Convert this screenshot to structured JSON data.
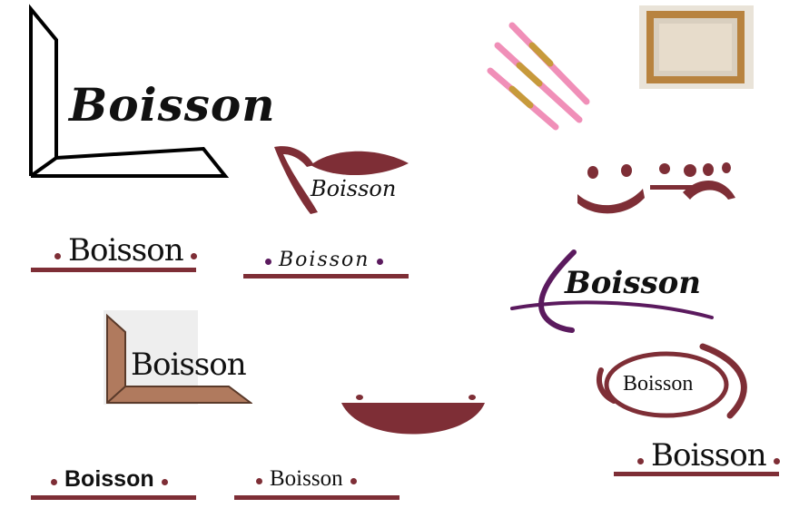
{
  "brand": {
    "name": "Boisson"
  },
  "colors": {
    "maroon": "#7e2e36",
    "purple": "#5b1a5e",
    "wood": "#b07a5e",
    "brush_pink": "#f08fb8",
    "brush_gold": "#c79a3b"
  },
  "icons": {
    "paint_brushes": "paint-brushes-photo",
    "canvas_frame": "wooden-canvas-frame-photo"
  }
}
